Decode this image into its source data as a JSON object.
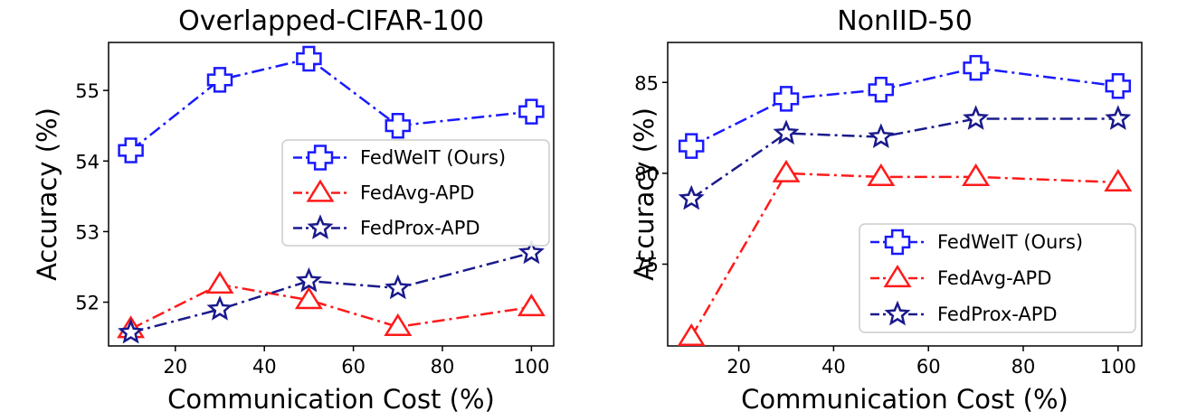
{
  "chart_data": [
    {
      "type": "line",
      "title": "Overlapped-CIFAR-100",
      "xlabel": "Communication Cost (%)",
      "ylabel": "Accuracy (%)",
      "xlim": [
        5,
        105
      ],
      "ylim": [
        51.38,
        55.68
      ],
      "xticks": [
        20,
        40,
        60,
        80,
        100
      ],
      "yticks": [
        52,
        53,
        54,
        55
      ],
      "grid": false,
      "legend_position": "center-right",
      "x": [
        10,
        30,
        50,
        70,
        100
      ],
      "series": [
        {
          "name": "FedWeIT (Ours)",
          "color": "#1a1aff",
          "marker": "plus",
          "values": [
            54.15,
            55.15,
            55.45,
            54.5,
            54.7
          ]
        },
        {
          "name": "FedAvg-APD",
          "color": "#ff1a1a",
          "marker": "triangle",
          "values": [
            51.62,
            52.25,
            52.03,
            51.65,
            51.93
          ]
        },
        {
          "name": "FedProx-APD",
          "color": "#1a1a8c",
          "marker": "star",
          "values": [
            51.57,
            51.9,
            52.3,
            52.2,
            52.7
          ]
        }
      ]
    },
    {
      "type": "line",
      "title": "NonIID-50",
      "xlabel": "Communication Cost (%)",
      "ylabel": "Accuracy (%)",
      "xlim": [
        5,
        105
      ],
      "ylim": [
        70.5,
        87.2
      ],
      "xticks": [
        20,
        40,
        60,
        80,
        100
      ],
      "yticks": [
        75,
        80,
        85
      ],
      "grid": false,
      "legend_position": "lower-right",
      "x": [
        10,
        30,
        50,
        70,
        100
      ],
      "series": [
        {
          "name": "FedWeIT (Ours)",
          "color": "#1a1aff",
          "marker": "plus",
          "values": [
            81.5,
            84.1,
            84.6,
            85.8,
            84.8
          ]
        },
        {
          "name": "FedAvg-APD",
          "color": "#ff1a1a",
          "marker": "triangle",
          "values": [
            71.0,
            80.0,
            79.8,
            79.8,
            79.5
          ]
        },
        {
          "name": "FedProx-APD",
          "color": "#1a1a8c",
          "marker": "star",
          "values": [
            78.6,
            82.2,
            82.0,
            83.0,
            83.0
          ]
        }
      ]
    }
  ]
}
